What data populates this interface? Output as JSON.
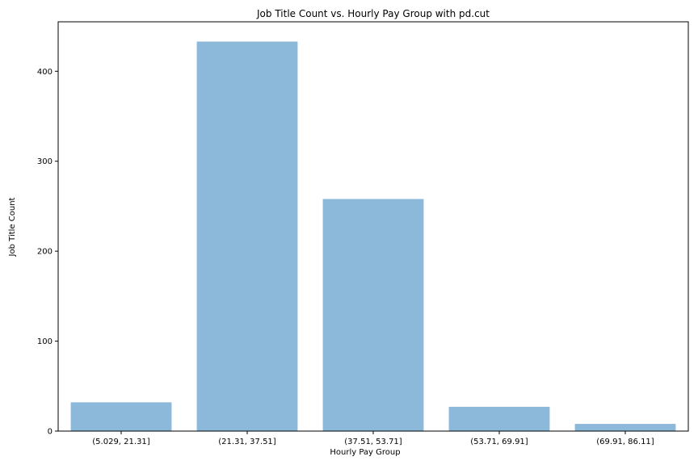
{
  "chart_data": {
    "type": "bar",
    "title": "Job Title Count vs. Hourly Pay Group with pd.cut",
    "xlabel": "Hourly Pay Group",
    "ylabel": "Job Title Count",
    "categories": [
      "(5.029, 21.31]",
      "(21.31, 37.51]",
      "(37.51, 53.71]",
      "(53.71, 69.91]",
      "(69.91, 86.11]"
    ],
    "values": [
      32,
      433,
      258,
      27,
      8
    ],
    "ylim": [
      0,
      455
    ],
    "yticks": [
      0,
      100,
      200,
      300,
      400
    ],
    "grid": false,
    "bar_color": "#8cb9d9"
  }
}
